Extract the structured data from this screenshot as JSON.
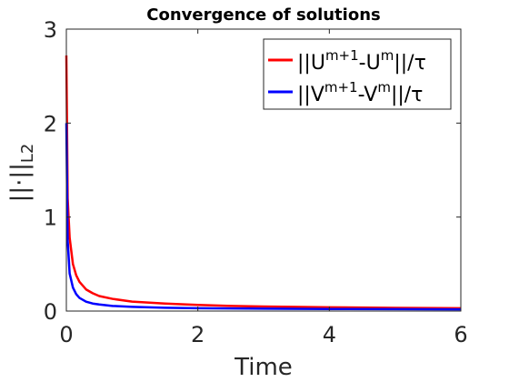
{
  "chart_data": {
    "type": "line",
    "title": "Convergence of solutions",
    "xlabel": "Time",
    "ylabel": "||·||_L2",
    "xlim": [
      0,
      6
    ],
    "ylim": [
      0,
      3
    ],
    "xticks": [
      0,
      2,
      4,
      6
    ],
    "yticks": [
      0,
      1,
      2,
      3
    ],
    "grid": false,
    "legend_position": "top-right",
    "series": [
      {
        "name": "||U^{m+1}-U^{m}||/τ",
        "color": "#ff0000",
        "x": [
          0,
          0.02,
          0.05,
          0.1,
          0.15,
          0.2,
          0.3,
          0.4,
          0.5,
          0.7,
          1.0,
          1.5,
          2.0,
          2.5,
          3.0,
          4.0,
          5.0,
          6.0
        ],
        "y": [
          2.72,
          1.2,
          0.78,
          0.5,
          0.38,
          0.31,
          0.23,
          0.19,
          0.16,
          0.13,
          0.1,
          0.08,
          0.065,
          0.055,
          0.048,
          0.04,
          0.034,
          0.03
        ]
      },
      {
        "name": "||V^{m+1}-V^{m}||/τ",
        "color": "#0000ff",
        "x": [
          0,
          0.02,
          0.05,
          0.1,
          0.15,
          0.2,
          0.3,
          0.4,
          0.5,
          0.7,
          1.0,
          1.5,
          2.0,
          3.0,
          4.0,
          5.0,
          6.0
        ],
        "y": [
          2.0,
          0.75,
          0.4,
          0.25,
          0.18,
          0.14,
          0.1,
          0.08,
          0.07,
          0.055,
          0.045,
          0.035,
          0.03,
          0.025,
          0.022,
          0.02,
          0.018
        ]
      }
    ]
  },
  "legend": {
    "u_label": {
      "base": "||U",
      "sup1": "m+1",
      "mid": "-U",
      "sup2": "m",
      "tail": "||/τ"
    },
    "v_label": {
      "base": "||V",
      "sup1": "m+1",
      "mid": "-V",
      "sup2": "m",
      "tail": "||/τ"
    }
  },
  "ylabel_parts": {
    "main": "||·||",
    "sub": "L2"
  }
}
